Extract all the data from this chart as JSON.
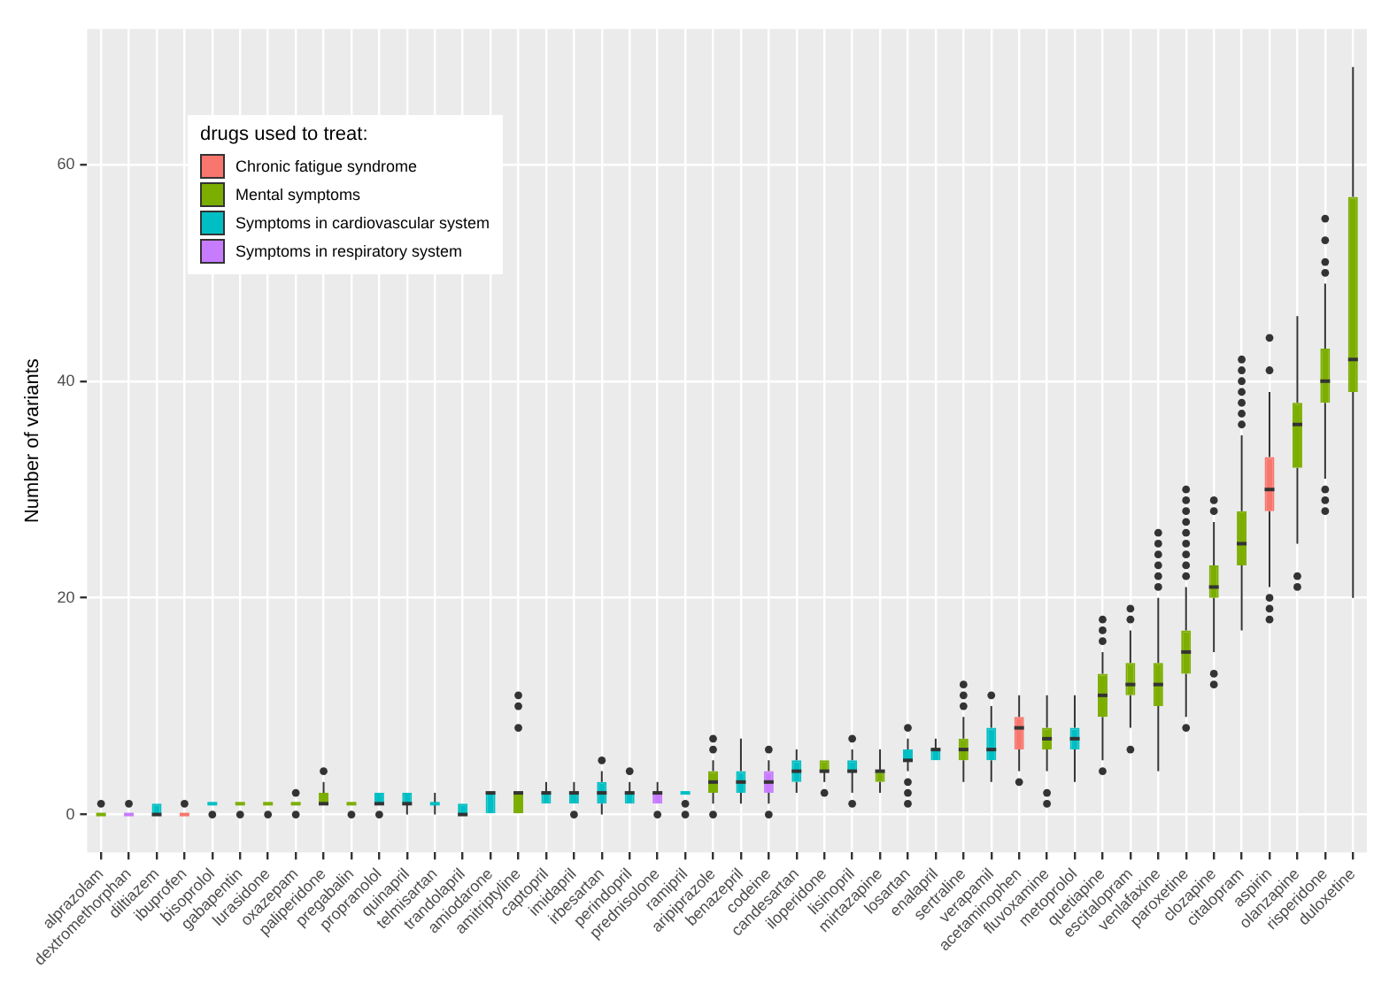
{
  "chart_data": {
    "type": "box",
    "ylabel": "Number of variants",
    "legend_title": "drugs used to treat:",
    "legend": "top left",
    "grid": true,
    "ylim": [
      -3.5,
      72.5
    ],
    "yticks": [
      0,
      20,
      40,
      60
    ],
    "categories": [
      "alprazolam",
      "dextromethorphan",
      "diltiazem",
      "ibuprofen",
      "bisoprolol",
      "gabapentin",
      "lurasidone",
      "oxazepam",
      "paliperidone",
      "pregabalin",
      "propranolol",
      "quinapril",
      "telmisartan",
      "trandolapril",
      "amiodarone",
      "amitriptyline",
      "captopril",
      "imidapril",
      "irbesartan",
      "perindopril",
      "prednisolone",
      "ramipril",
      "aripiprazole",
      "benazepril",
      "codeine",
      "candesartan",
      "iloperidone",
      "lisinopril",
      "mirtazapine",
      "losartan",
      "enalapril",
      "sertraline",
      "verapamil",
      "acetaminophen",
      "fluvoxamine",
      "metoprolol",
      "quetiapine",
      "escitalopram",
      "venlafaxine",
      "paroxetine",
      "clozapine",
      "citalopram",
      "aspirin",
      "olanzapine",
      "risperidone",
      "duloxetine"
    ],
    "series": [
      {
        "name": "Chronic fatigue syndrome",
        "color": "#f8766d",
        "boxes": [
          null,
          null,
          null,
          {
            "low": 0,
            "q1": 0,
            "median": 0,
            "q3": 0,
            "high": 0,
            "outliers": [
              1
            ]
          },
          null,
          null,
          null,
          null,
          null,
          null,
          null,
          null,
          null,
          null,
          null,
          null,
          null,
          null,
          null,
          null,
          null,
          null,
          null,
          null,
          null,
          null,
          null,
          null,
          null,
          null,
          null,
          null,
          null,
          {
            "low": 4,
            "q1": 6,
            "median": 8,
            "q3": 9,
            "high": 11,
            "outliers": [
              3
            ]
          },
          null,
          null,
          null,
          null,
          null,
          null,
          null,
          null,
          {
            "low": 21,
            "q1": 28,
            "median": 30,
            "q3": 33,
            "high": 39,
            "outliers": [
              18,
              19,
              20,
              41,
              44
            ]
          },
          null,
          null,
          null
        ]
      },
      {
        "name": "Mental symptoms",
        "color": "#7cae00",
        "boxes": [
          {
            "low": 0,
            "q1": 0,
            "median": 0,
            "q3": 0,
            "high": 0,
            "outliers": [
              1
            ]
          },
          null,
          null,
          null,
          null,
          {
            "low": 1,
            "q1": 1,
            "median": 1,
            "q3": 1,
            "high": 1,
            "outliers": [
              0
            ]
          },
          {
            "low": 1,
            "q1": 1,
            "median": 1,
            "q3": 1,
            "high": 1,
            "outliers": [
              0
            ]
          },
          {
            "low": 1,
            "q1": 1,
            "median": 1,
            "q3": 1,
            "high": 1,
            "outliers": [
              0,
              2
            ]
          },
          {
            "low": 1,
            "q1": 1,
            "median": 1,
            "q3": 2,
            "high": 3,
            "outliers": [
              4
            ]
          },
          {
            "low": 1,
            "q1": 1,
            "median": 1,
            "q3": 1,
            "high": 1,
            "outliers": [
              0
            ]
          },
          null,
          null,
          null,
          null,
          null,
          {
            "low": 0,
            "q1": 0,
            "median": 2,
            "q3": 2,
            "high": 2,
            "outliers": [
              8,
              10,
              11
            ]
          },
          null,
          null,
          null,
          null,
          null,
          null,
          {
            "low": 1,
            "q1": 2,
            "median": 3,
            "q3": 4,
            "high": 5,
            "outliers": [
              0,
              6,
              7
            ]
          },
          null,
          null,
          null,
          {
            "low": 3,
            "q1": 4,
            "median": 4,
            "q3": 5,
            "high": 5,
            "outliers": [
              2
            ]
          },
          null,
          {
            "low": 2,
            "q1": 3,
            "median": 4,
            "q3": 4,
            "high": 6
          },
          null,
          null,
          {
            "low": 3,
            "q1": 5,
            "median": 6,
            "q3": 7,
            "high": 9,
            "outliers": [
              10,
              11,
              12
            ]
          },
          null,
          null,
          {
            "low": 4,
            "q1": 6,
            "median": 7,
            "q3": 8,
            "high": 11,
            "outliers": [
              1,
              2
            ]
          },
          null,
          {
            "low": 5,
            "q1": 9,
            "median": 11,
            "q3": 13,
            "high": 15,
            "outliers": [
              4,
              16,
              17,
              18
            ]
          },
          {
            "low": 8,
            "q1": 11,
            "median": 12,
            "q3": 14,
            "high": 17,
            "outliers": [
              6,
              18,
              19
            ]
          },
          {
            "low": 4,
            "q1": 10,
            "median": 12,
            "q3": 14,
            "high": 20,
            "outliers": [
              21,
              22,
              23,
              24,
              25,
              26
            ]
          },
          {
            "low": 9,
            "q1": 13,
            "median": 15,
            "q3": 17,
            "high": 21,
            "outliers": [
              8,
              22,
              23,
              24,
              25,
              26,
              27,
              28,
              29,
              30
            ]
          },
          {
            "low": 15,
            "q1": 20,
            "median": 21,
            "q3": 23,
            "high": 27,
            "outliers": [
              12,
              13,
              28,
              29
            ]
          },
          {
            "low": 17,
            "q1": 23,
            "median": 25,
            "q3": 28,
            "high": 35,
            "outliers": [
              36,
              37,
              38,
              39,
              40,
              41,
              42
            ]
          },
          null,
          {
            "low": 25,
            "q1": 32,
            "median": 36,
            "q3": 38,
            "high": 46,
            "outliers": [
              21,
              22
            ]
          },
          {
            "low": 31,
            "q1": 38,
            "median": 40,
            "q3": 43,
            "high": 49,
            "outliers": [
              28,
              29,
              30,
              50,
              51,
              53,
              55
            ]
          },
          {
            "low": 20,
            "q1": 39,
            "median": 42,
            "q3": 57,
            "high": 69
          }
        ]
      },
      {
        "name": "Symptoms in cardiovascular system",
        "color": "#00bfc4",
        "boxes": [
          null,
          null,
          {
            "low": 0,
            "q1": 0,
            "median": 0,
            "q3": 1,
            "high": 1
          },
          null,
          {
            "low": 1,
            "q1": 1,
            "median": 1,
            "q3": 1,
            "high": 1,
            "outliers": [
              0
            ]
          },
          null,
          null,
          null,
          null,
          null,
          {
            "low": 1,
            "q1": 1,
            "median": 1,
            "q3": 2,
            "high": 2,
            "outliers": [
              0
            ]
          },
          {
            "low": 0,
            "q1": 1,
            "median": 1,
            "q3": 2,
            "high": 2
          },
          {
            "low": 0,
            "q1": 1,
            "median": 1,
            "q3": 1,
            "high": 2
          },
          {
            "low": 0,
            "q1": 0,
            "median": 0,
            "q3": 1,
            "high": 1
          },
          {
            "low": 0,
            "q1": 0,
            "median": 2,
            "q3": 2,
            "high": 2
          },
          null,
          {
            "low": 1,
            "q1": 1,
            "median": 2,
            "q3": 2,
            "high": 3
          },
          {
            "low": 1,
            "q1": 1,
            "median": 2,
            "q3": 2,
            "high": 3,
            "outliers": [
              0
            ]
          },
          {
            "low": 0,
            "q1": 1,
            "median": 2,
            "q3": 3,
            "high": 4,
            "outliers": [
              5
            ]
          },
          {
            "low": 1,
            "q1": 1,
            "median": 2,
            "q3": 2,
            "high": 3,
            "outliers": [
              4
            ]
          },
          null,
          {
            "low": 2,
            "q1": 2,
            "median": 2,
            "q3": 2,
            "high": 2,
            "outliers": [
              0,
              1
            ]
          },
          null,
          {
            "low": 1,
            "q1": 2,
            "median": 3,
            "q3": 4,
            "high": 7
          },
          null,
          {
            "low": 2,
            "q1": 3,
            "median": 4,
            "q3": 5,
            "high": 6
          },
          null,
          {
            "low": 2,
            "q1": 4,
            "median": 4,
            "q3": 5,
            "high": 6,
            "outliers": [
              1,
              7
            ]
          },
          null,
          {
            "low": 4,
            "q1": 5,
            "median": 5,
            "q3": 6,
            "high": 7,
            "outliers": [
              1,
              2,
              3,
              8
            ]
          },
          {
            "low": 5,
            "q1": 5,
            "median": 6,
            "q3": 6,
            "high": 7
          },
          null,
          {
            "low": 3,
            "q1": 5,
            "median": 6,
            "q3": 8,
            "high": 10,
            "outliers": [
              11
            ]
          },
          null,
          null,
          {
            "low": 3,
            "q1": 6,
            "median": 7,
            "q3": 8,
            "high": 11
          },
          null,
          null,
          null,
          null,
          null,
          null,
          null,
          null,
          null,
          null
        ]
      },
      {
        "name": "Symptoms in respiratory system",
        "color": "#c77cff",
        "boxes": [
          null,
          {
            "low": 0,
            "q1": 0,
            "median": 0,
            "q3": 0,
            "high": 0,
            "outliers": [
              1
            ]
          },
          null,
          null,
          null,
          null,
          null,
          null,
          null,
          null,
          null,
          null,
          null,
          null,
          null,
          null,
          null,
          null,
          null,
          null,
          {
            "low": 1,
            "q1": 1,
            "median": 2,
            "q3": 2,
            "high": 3,
            "outliers": [
              0
            ]
          },
          null,
          null,
          null,
          {
            "low": 1,
            "q1": 2,
            "median": 3,
            "q3": 4,
            "high": 5,
            "outliers": [
              0,
              6
            ]
          },
          null,
          null,
          null,
          null,
          null,
          null,
          null,
          null,
          null,
          null,
          null,
          null,
          null,
          null,
          null,
          null,
          null,
          null,
          null,
          null,
          null
        ]
      }
    ]
  }
}
